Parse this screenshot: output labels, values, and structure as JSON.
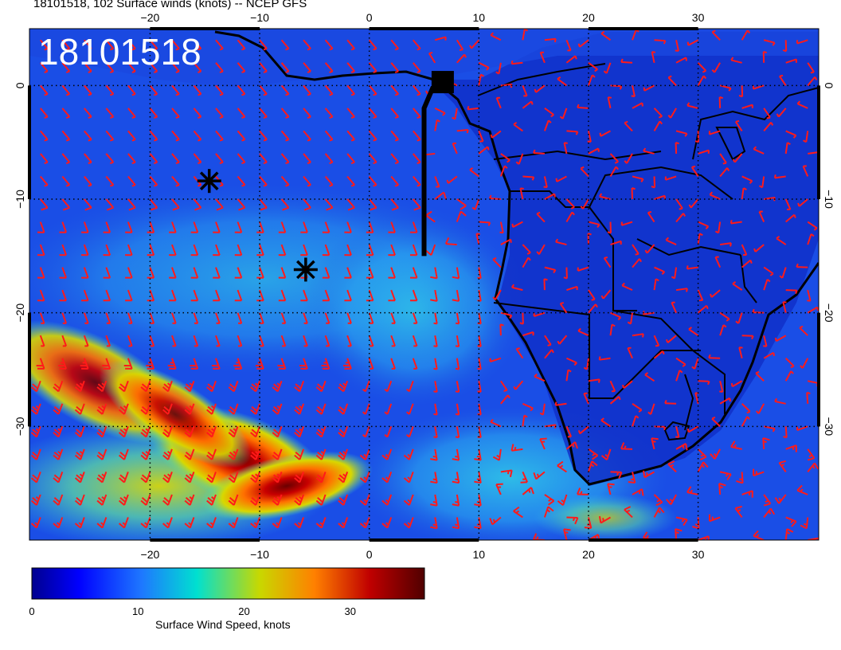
{
  "title": "18101518, 102 Surface winds (knots) -- NCEP GFS",
  "stamp": "18101518",
  "map": {
    "lon_range": [
      -31,
      41
    ],
    "lat_range": [
      -40,
      5
    ],
    "lon_ticks": [
      "−20",
      "−10",
      "0",
      "10",
      "20",
      "30"
    ],
    "lat_ticks": [
      "0",
      "−10",
      "−20",
      "−30"
    ],
    "lon_tick_values": [
      -20,
      -10,
      0,
      10,
      20,
      30
    ],
    "lat_tick_values": [
      0,
      -10,
      -20,
      -30
    ],
    "barb_color": "#ff1a1a",
    "markers": [
      {
        "name": "star-marker-1",
        "lon": -14.6,
        "lat": -8.4
      },
      {
        "name": "star-marker-2",
        "lon": -5.8,
        "lat": -16.2
      }
    ],
    "flight_track": {
      "start": [
        5.0,
        -15.0
      ],
      "end": [
        6.7,
        0.3
      ]
    }
  },
  "colorbar": {
    "label": "Surface Wind Speed, knots",
    "tick_labels": [
      "0",
      "10",
      "20",
      "30"
    ],
    "tick_values": [
      0,
      10,
      20,
      30
    ],
    "max": 37,
    "colors": [
      "#00008f",
      "#0000ff",
      "#1e78ff",
      "#00e0d0",
      "#c8d800",
      "#ff8000",
      "#c00000",
      "#500000"
    ]
  }
}
